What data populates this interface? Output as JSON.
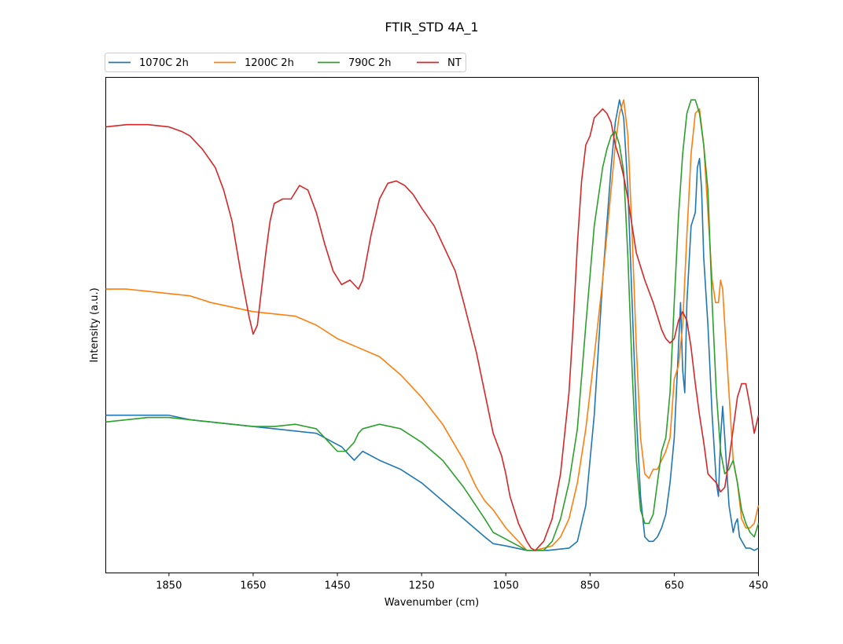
{
  "chart_data": {
    "type": "line",
    "title": "FTIR_STD 4A_1",
    "xlabel": "Wavenumber (cm)",
    "ylabel": "Intensity (a.u.)",
    "xlim": [
      2000,
      450
    ],
    "x_inverted": true,
    "ylim": [
      -0.05,
      1.05
    ],
    "y_ticks_shown": false,
    "x_ticks": [
      1850,
      1650,
      1450,
      1250,
      1050,
      850,
      650,
      450
    ],
    "grid": false,
    "legend": {
      "placement": "above plot, top-left, 4 columns"
    },
    "series": [
      {
        "name": "1070C 2h",
        "color": "#1f77b4",
        "points": [
          [
            2000,
            0.3
          ],
          [
            1950,
            0.3
          ],
          [
            1900,
            0.3
          ],
          [
            1850,
            0.3
          ],
          [
            1800,
            0.29
          ],
          [
            1750,
            0.285
          ],
          [
            1700,
            0.28
          ],
          [
            1650,
            0.275
          ],
          [
            1600,
            0.27
          ],
          [
            1550,
            0.265
          ],
          [
            1500,
            0.26
          ],
          [
            1480,
            0.25
          ],
          [
            1460,
            0.24
          ],
          [
            1440,
            0.23
          ],
          [
            1420,
            0.21
          ],
          [
            1410,
            0.2
          ],
          [
            1400,
            0.21
          ],
          [
            1390,
            0.22
          ],
          [
            1350,
            0.2
          ],
          [
            1300,
            0.18
          ],
          [
            1250,
            0.15
          ],
          [
            1200,
            0.11
          ],
          [
            1150,
            0.07
          ],
          [
            1100,
            0.03
          ],
          [
            1080,
            0.015
          ],
          [
            1050,
            0.01
          ],
          [
            1000,
            0.0
          ],
          [
            950,
            0.0
          ],
          [
            900,
            0.005
          ],
          [
            880,
            0.02
          ],
          [
            860,
            0.1
          ],
          [
            840,
            0.3
          ],
          [
            820,
            0.6
          ],
          [
            800,
            0.85
          ],
          [
            790,
            0.95
          ],
          [
            780,
            1.0
          ],
          [
            770,
            0.96
          ],
          [
            760,
            0.8
          ],
          [
            750,
            0.55
          ],
          [
            740,
            0.3
          ],
          [
            730,
            0.12
          ],
          [
            720,
            0.03
          ],
          [
            710,
            0.02
          ],
          [
            700,
            0.02
          ],
          [
            690,
            0.03
          ],
          [
            680,
            0.05
          ],
          [
            670,
            0.08
          ],
          [
            660,
            0.15
          ],
          [
            650,
            0.25
          ],
          [
            640,
            0.45
          ],
          [
            635,
            0.55
          ],
          [
            630,
            0.4
          ],
          [
            625,
            0.35
          ],
          [
            620,
            0.55
          ],
          [
            610,
            0.72
          ],
          [
            600,
            0.75
          ],
          [
            595,
            0.85
          ],
          [
            590,
            0.87
          ],
          [
            585,
            0.8
          ],
          [
            580,
            0.65
          ],
          [
            570,
            0.5
          ],
          [
            560,
            0.3
          ],
          [
            550,
            0.15
          ],
          [
            545,
            0.12
          ],
          [
            540,
            0.25
          ],
          [
            535,
            0.32
          ],
          [
            530,
            0.25
          ],
          [
            520,
            0.1
          ],
          [
            510,
            0.04
          ],
          [
            505,
            0.06
          ],
          [
            500,
            0.07
          ],
          [
            495,
            0.03
          ],
          [
            480,
            0.005
          ],
          [
            470,
            0.005
          ],
          [
            460,
            0.0
          ],
          [
            450,
            0.005
          ]
        ]
      },
      {
        "name": "1200C 2h",
        "color": "#ff7f0e",
        "points": [
          [
            2000,
            0.58
          ],
          [
            1950,
            0.58
          ],
          [
            1900,
            0.575
          ],
          [
            1850,
            0.57
          ],
          [
            1800,
            0.565
          ],
          [
            1750,
            0.55
          ],
          [
            1700,
            0.54
          ],
          [
            1650,
            0.53
          ],
          [
            1600,
            0.525
          ],
          [
            1550,
            0.52
          ],
          [
            1500,
            0.5
          ],
          [
            1450,
            0.47
          ],
          [
            1400,
            0.45
          ],
          [
            1350,
            0.43
          ],
          [
            1300,
            0.39
          ],
          [
            1250,
            0.34
          ],
          [
            1200,
            0.28
          ],
          [
            1150,
            0.2
          ],
          [
            1120,
            0.14
          ],
          [
            1100,
            0.11
          ],
          [
            1080,
            0.09
          ],
          [
            1050,
            0.05
          ],
          [
            1020,
            0.02
          ],
          [
            1000,
            0.0
          ],
          [
            980,
            0.0
          ],
          [
            960,
            0.005
          ],
          [
            940,
            0.01
          ],
          [
            920,
            0.03
          ],
          [
            900,
            0.07
          ],
          [
            880,
            0.15
          ],
          [
            860,
            0.27
          ],
          [
            840,
            0.43
          ],
          [
            820,
            0.6
          ],
          [
            800,
            0.8
          ],
          [
            790,
            0.9
          ],
          [
            780,
            0.97
          ],
          [
            770,
            1.0
          ],
          [
            760,
            0.92
          ],
          [
            750,
            0.7
          ],
          [
            740,
            0.45
          ],
          [
            730,
            0.25
          ],
          [
            720,
            0.17
          ],
          [
            710,
            0.16
          ],
          [
            700,
            0.18
          ],
          [
            690,
            0.18
          ],
          [
            680,
            0.2
          ],
          [
            670,
            0.22
          ],
          [
            660,
            0.25
          ],
          [
            650,
            0.38
          ],
          [
            640,
            0.41
          ],
          [
            630,
            0.5
          ],
          [
            620,
            0.7
          ],
          [
            610,
            0.88
          ],
          [
            600,
            0.97
          ],
          [
            590,
            0.98
          ],
          [
            580,
            0.9
          ],
          [
            570,
            0.75
          ],
          [
            560,
            0.6
          ],
          [
            552,
            0.55
          ],
          [
            545,
            0.55
          ],
          [
            540,
            0.6
          ],
          [
            535,
            0.58
          ],
          [
            530,
            0.5
          ],
          [
            520,
            0.35
          ],
          [
            510,
            0.2
          ],
          [
            500,
            0.15
          ],
          [
            490,
            0.07
          ],
          [
            480,
            0.05
          ],
          [
            470,
            0.05
          ],
          [
            460,
            0.06
          ],
          [
            450,
            0.1
          ]
        ]
      },
      {
        "name": "790C 2h",
        "color": "#2ca02c",
        "points": [
          [
            2000,
            0.285
          ],
          [
            1950,
            0.29
          ],
          [
            1900,
            0.295
          ],
          [
            1850,
            0.295
          ],
          [
            1800,
            0.29
          ],
          [
            1750,
            0.285
          ],
          [
            1700,
            0.28
          ],
          [
            1650,
            0.275
          ],
          [
            1600,
            0.275
          ],
          [
            1550,
            0.28
          ],
          [
            1500,
            0.27
          ],
          [
            1470,
            0.24
          ],
          [
            1450,
            0.22
          ],
          [
            1430,
            0.22
          ],
          [
            1410,
            0.24
          ],
          [
            1400,
            0.26
          ],
          [
            1390,
            0.27
          ],
          [
            1370,
            0.275
          ],
          [
            1350,
            0.28
          ],
          [
            1300,
            0.27
          ],
          [
            1250,
            0.24
          ],
          [
            1200,
            0.2
          ],
          [
            1150,
            0.14
          ],
          [
            1100,
            0.07
          ],
          [
            1080,
            0.04
          ],
          [
            1050,
            0.025
          ],
          [
            1020,
            0.01
          ],
          [
            1000,
            0.0
          ],
          [
            980,
            0.0
          ],
          [
            960,
            0.0
          ],
          [
            940,
            0.02
          ],
          [
            920,
            0.07
          ],
          [
            900,
            0.15
          ],
          [
            880,
            0.27
          ],
          [
            860,
            0.5
          ],
          [
            840,
            0.72
          ],
          [
            820,
            0.85
          ],
          [
            810,
            0.89
          ],
          [
            800,
            0.92
          ],
          [
            790,
            0.93
          ],
          [
            780,
            0.9
          ],
          [
            770,
            0.84
          ],
          [
            760,
            0.65
          ],
          [
            750,
            0.4
          ],
          [
            740,
            0.2
          ],
          [
            730,
            0.09
          ],
          [
            720,
            0.06
          ],
          [
            710,
            0.06
          ],
          [
            700,
            0.08
          ],
          [
            690,
            0.15
          ],
          [
            680,
            0.22
          ],
          [
            670,
            0.25
          ],
          [
            660,
            0.35
          ],
          [
            650,
            0.55
          ],
          [
            640,
            0.74
          ],
          [
            630,
            0.88
          ],
          [
            620,
            0.97
          ],
          [
            610,
            1.0
          ],
          [
            600,
            1.0
          ],
          [
            590,
            0.97
          ],
          [
            580,
            0.9
          ],
          [
            570,
            0.8
          ],
          [
            560,
            0.55
          ],
          [
            550,
            0.35
          ],
          [
            540,
            0.22
          ],
          [
            530,
            0.17
          ],
          [
            520,
            0.18
          ],
          [
            510,
            0.2
          ],
          [
            500,
            0.15
          ],
          [
            490,
            0.09
          ],
          [
            480,
            0.06
          ],
          [
            470,
            0.04
          ],
          [
            460,
            0.03
          ],
          [
            450,
            0.06
          ]
        ]
      },
      {
        "name": "NT",
        "color": "#d62728",
        "points": [
          [
            2000,
            0.94
          ],
          [
            1950,
            0.945
          ],
          [
            1900,
            0.945
          ],
          [
            1850,
            0.94
          ],
          [
            1820,
            0.93
          ],
          [
            1800,
            0.92
          ],
          [
            1770,
            0.89
          ],
          [
            1740,
            0.85
          ],
          [
            1720,
            0.8
          ],
          [
            1700,
            0.73
          ],
          [
            1680,
            0.62
          ],
          [
            1660,
            0.52
          ],
          [
            1650,
            0.48
          ],
          [
            1640,
            0.5
          ],
          [
            1630,
            0.58
          ],
          [
            1620,
            0.66
          ],
          [
            1610,
            0.73
          ],
          [
            1600,
            0.77
          ],
          [
            1580,
            0.78
          ],
          [
            1560,
            0.78
          ],
          [
            1540,
            0.81
          ],
          [
            1520,
            0.8
          ],
          [
            1500,
            0.75
          ],
          [
            1480,
            0.68
          ],
          [
            1460,
            0.62
          ],
          [
            1440,
            0.59
          ],
          [
            1420,
            0.6
          ],
          [
            1400,
            0.58
          ],
          [
            1390,
            0.6
          ],
          [
            1370,
            0.7
          ],
          [
            1350,
            0.78
          ],
          [
            1330,
            0.815
          ],
          [
            1310,
            0.82
          ],
          [
            1290,
            0.81
          ],
          [
            1270,
            0.79
          ],
          [
            1250,
            0.76
          ],
          [
            1220,
            0.72
          ],
          [
            1200,
            0.68
          ],
          [
            1170,
            0.62
          ],
          [
            1150,
            0.55
          ],
          [
            1120,
            0.44
          ],
          [
            1100,
            0.35
          ],
          [
            1080,
            0.26
          ],
          [
            1060,
            0.21
          ],
          [
            1050,
            0.17
          ],
          [
            1040,
            0.12
          ],
          [
            1020,
            0.06
          ],
          [
            1000,
            0.02
          ],
          [
            990,
            0.005
          ],
          [
            980,
            0.0
          ],
          [
            970,
            0.01
          ],
          [
            960,
            0.02
          ],
          [
            940,
            0.07
          ],
          [
            920,
            0.17
          ],
          [
            900,
            0.35
          ],
          [
            890,
            0.5
          ],
          [
            880,
            0.68
          ],
          [
            870,
            0.82
          ],
          [
            860,
            0.9
          ],
          [
            850,
            0.92
          ],
          [
            840,
            0.96
          ],
          [
            830,
            0.97
          ],
          [
            820,
            0.98
          ],
          [
            810,
            0.97
          ],
          [
            800,
            0.95
          ],
          [
            790,
            0.9
          ],
          [
            780,
            0.87
          ],
          [
            770,
            0.83
          ],
          [
            760,
            0.78
          ],
          [
            750,
            0.72
          ],
          [
            740,
            0.66
          ],
          [
            720,
            0.6
          ],
          [
            700,
            0.55
          ],
          [
            690,
            0.52
          ],
          [
            680,
            0.49
          ],
          [
            670,
            0.47
          ],
          [
            660,
            0.46
          ],
          [
            650,
            0.47
          ],
          [
            640,
            0.51
          ],
          [
            630,
            0.53
          ],
          [
            620,
            0.51
          ],
          [
            610,
            0.45
          ],
          [
            600,
            0.37
          ],
          [
            590,
            0.3
          ],
          [
            580,
            0.24
          ],
          [
            570,
            0.17
          ],
          [
            560,
            0.16
          ],
          [
            550,
            0.15
          ],
          [
            540,
            0.13
          ],
          [
            530,
            0.14
          ],
          [
            520,
            0.2
          ],
          [
            510,
            0.27
          ],
          [
            500,
            0.34
          ],
          [
            490,
            0.37
          ],
          [
            480,
            0.37
          ],
          [
            470,
            0.32
          ],
          [
            460,
            0.26
          ],
          [
            450,
            0.3
          ]
        ]
      }
    ]
  }
}
